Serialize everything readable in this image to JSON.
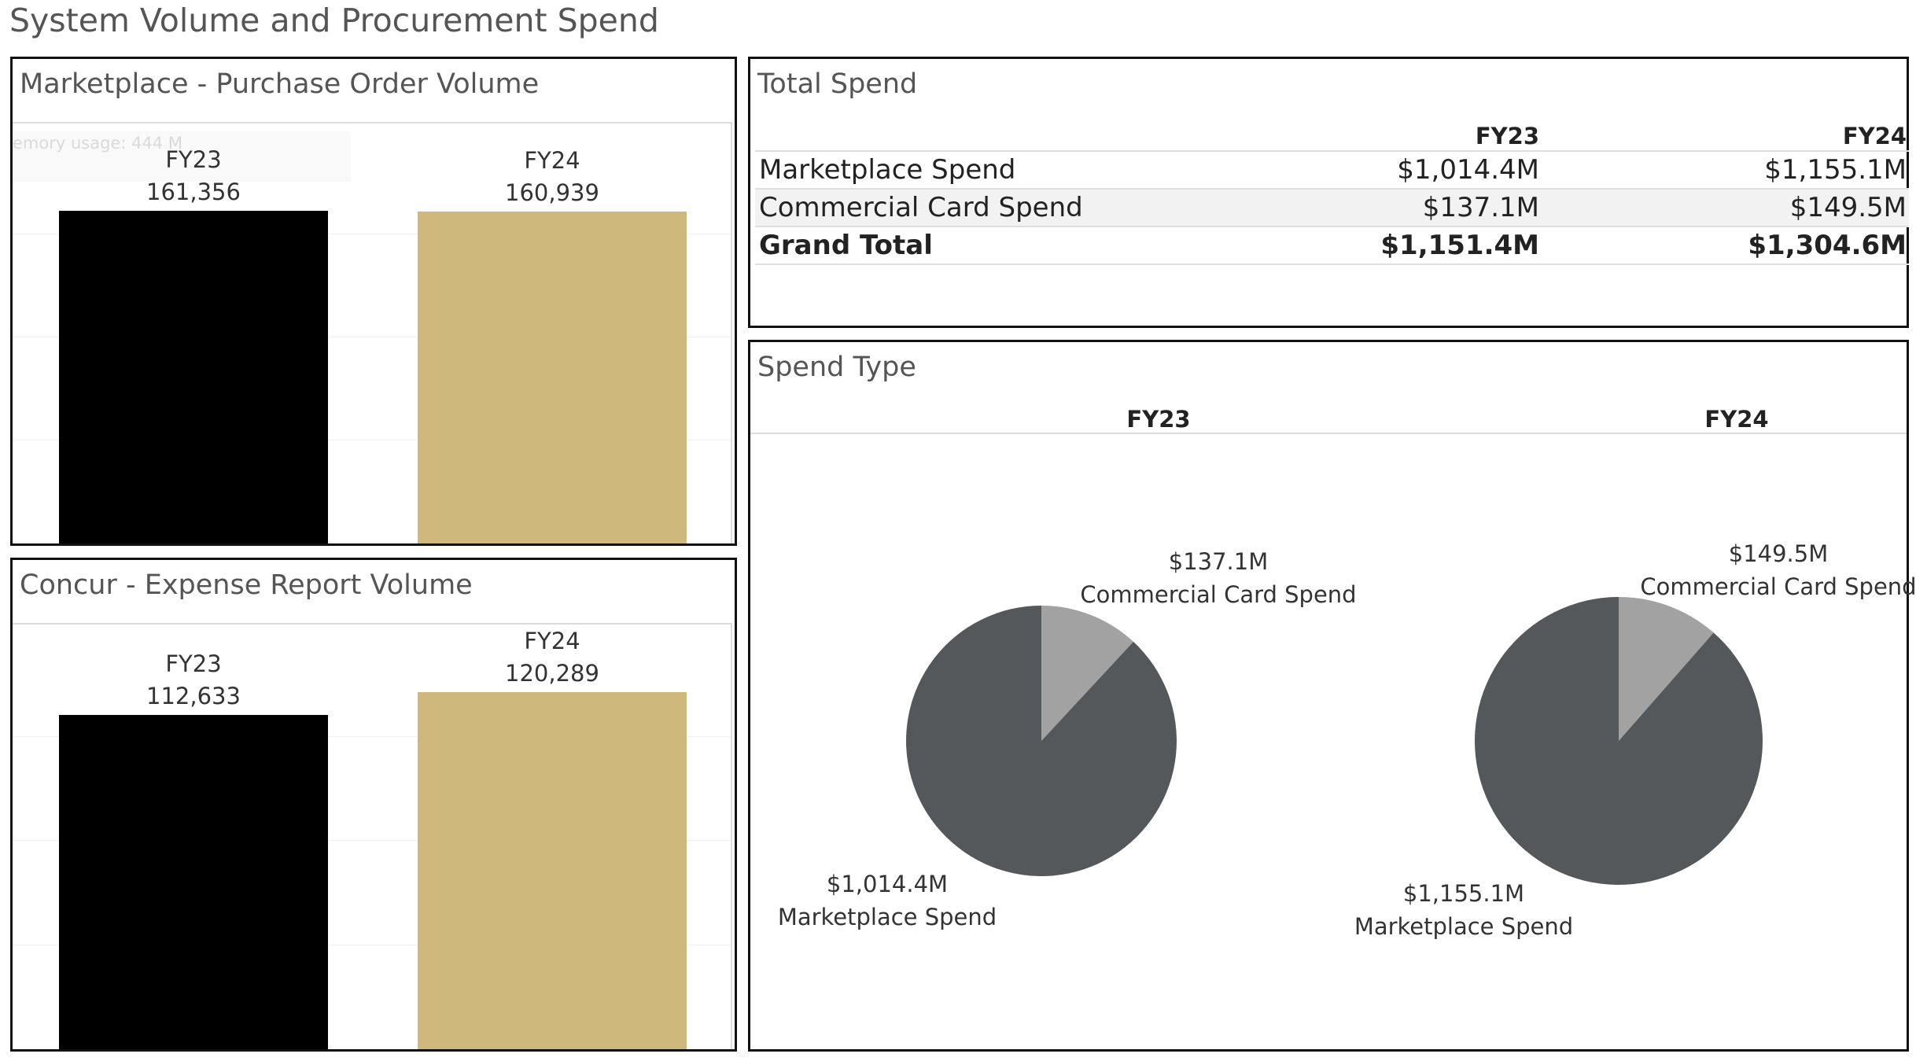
{
  "page_title": "System Volume and Procurement Spend",
  "colors": {
    "fy23_bar": "#000000",
    "fy24_bar": "#cfb87c",
    "pie_marketplace": "#55585a",
    "pie_card": "#a2a2a2"
  },
  "marketplace_panel": {
    "title": "Marketplace - Purchase Order Volume",
    "faint_overlay": "emory usage: 444 M"
  },
  "concur_panel": {
    "title": "Concur - Expense Report Volume"
  },
  "total_spend": {
    "title": "Total Spend",
    "columns": [
      "",
      "FY23",
      "FY24"
    ],
    "rows": [
      {
        "name": "Marketplace Spend",
        "fy23": "$1,014.4M",
        "fy24": "$1,155.1M"
      },
      {
        "name": "Commercial Card Spend",
        "fy23": "$137.1M",
        "fy24": "$149.5M"
      },
      {
        "name": "Grand Total",
        "fy23": "$1,151.4M",
        "fy24": "$1,304.6M"
      }
    ]
  },
  "spend_type": {
    "title": "Spend Type"
  },
  "chart_data": [
    {
      "type": "bar",
      "title": "Marketplace - Purchase Order Volume",
      "categories": [
        "FY23",
        "FY24"
      ],
      "values": [
        161356,
        160939
      ],
      "value_labels": [
        "161,356",
        "160,939"
      ],
      "ylim": [
        0,
        205000
      ],
      "grid": true
    },
    {
      "type": "bar",
      "title": "Concur - Expense Report Volume",
      "categories": [
        "FY23",
        "FY24"
      ],
      "values": [
        112633,
        120289
      ],
      "value_labels": [
        "112,633",
        "120,289"
      ],
      "ylim": [
        0,
        144000
      ],
      "grid": true
    },
    {
      "type": "pie",
      "title": "Spend Type",
      "column": "FY23",
      "slices": [
        {
          "label": "Commercial Card Spend",
          "value": 137.1,
          "value_label": "$137.1M"
        },
        {
          "label": "Marketplace Spend",
          "value": 1014.4,
          "value_label": "$1,014.4M"
        }
      ]
    },
    {
      "type": "pie",
      "title": "Spend Type",
      "column": "FY24",
      "slices": [
        {
          "label": "Commercial Card Spend",
          "value": 149.5,
          "value_label": "$149.5M"
        },
        {
          "label": "Marketplace Spend",
          "value": 1155.1,
          "value_label": "$1,155.1M"
        }
      ]
    }
  ]
}
